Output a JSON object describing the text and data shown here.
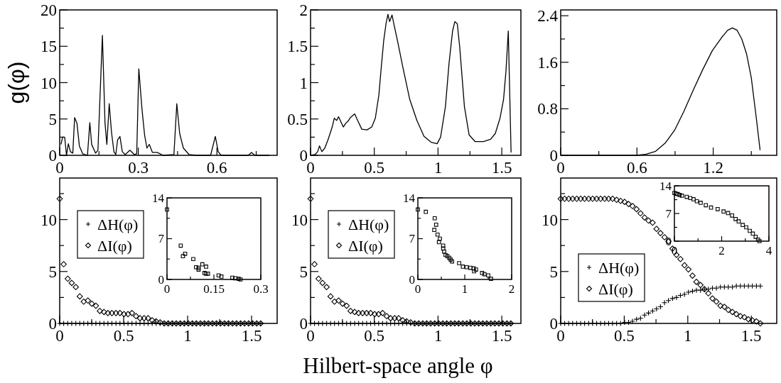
{
  "chart_data": [
    {
      "type": "line",
      "ylabel": "g(φ)",
      "xlim": [
        0,
        0.83
      ],
      "ylim": [
        0,
        20
      ],
      "xticks": [
        0,
        {
          "value": 0.15,
          "label": null
        },
        0.3,
        {
          "value": 0.45,
          "label": null
        },
        0.6,
        {
          "value": 0.75,
          "label": null
        }
      ],
      "yticks": [
        0,
        {
          "value": 2.5,
          "label": null
        },
        5,
        {
          "value": 7.5,
          "label": null
        },
        10,
        {
          "value": 12.5,
          "label": null
        },
        15,
        {
          "value": 17.5,
          "label": null
        },
        20
      ],
      "series": [
        {
          "color": "#000000",
          "x": [
            0.005,
            0.011,
            0.019,
            0.026,
            0.033,
            0.041,
            0.05,
            0.057,
            0.066,
            0.075,
            0.088,
            0.106,
            0.115,
            0.122,
            0.137,
            0.146,
            0.163,
            0.173,
            0.18,
            0.189,
            0.198,
            0.207,
            0.214,
            0.221,
            0.23,
            0.239,
            0.25,
            0.268,
            0.285,
            0.294,
            0.302,
            0.314,
            0.324,
            0.333,
            0.342,
            0.354,
            0.372,
            0.395,
            0.436,
            0.447,
            0.458,
            0.472,
            0.494,
            0.521,
            0.576,
            0.594,
            0.605,
            0.616,
            0.72,
            0.732,
            0.745,
            0.8
          ],
          "values": [
            1.5,
            2.5,
            2.5,
            0,
            1.6,
            0.5,
            0.3,
            5.2,
            4.4,
            1.3,
            0.2,
            0,
            4.5,
            1.5,
            0.3,
            0.7,
            16.5,
            4.4,
            1.5,
            7.1,
            3.1,
            0.5,
            0.1,
            2.1,
            2.6,
            0.5,
            0.1,
            0.7,
            0.1,
            0.2,
            11.9,
            6.4,
            2.8,
            1.0,
            1.5,
            0.4,
            0.4,
            0,
            0.1,
            7.1,
            3.0,
            1.0,
            0.1,
            0,
            0,
            2.6,
            0.5,
            0,
            0,
            0.4,
            0,
            0
          ]
        }
      ]
    },
    {
      "type": "line",
      "xlim": [
        0,
        1.65
      ],
      "ylim": [
        0,
        2
      ],
      "xticks": [
        0,
        {
          "value": 0.25,
          "label": null
        },
        0.5,
        {
          "value": 0.75,
          "label": null
        },
        1,
        {
          "value": 1.25,
          "label": null
        },
        1.5
      ],
      "yticks": [
        0,
        {
          "value": 0.25,
          "label": null
        },
        0.5,
        {
          "value": 0.75,
          "label": null
        },
        1,
        {
          "value": 1.25,
          "label": null
        },
        1.5,
        {
          "value": 1.75,
          "label": null
        },
        2
      ],
      "series": [
        {
          "color": "#000000",
          "x": [
            0,
            0.034,
            0.056,
            0.07,
            0.089,
            0.112,
            0.136,
            0.155,
            0.173,
            0.186,
            0.205,
            0.22,
            0.238,
            0.257,
            0.276,
            0.294,
            0.313,
            0.346,
            0.369,
            0.402,
            0.443,
            0.48,
            0.508,
            0.536,
            0.555,
            0.574,
            0.592,
            0.607,
            0.62,
            0.639,
            0.657,
            0.685,
            0.723,
            0.778,
            0.834,
            0.89,
            0.946,
            0.993,
            1.02,
            1.058,
            1.086,
            1.114,
            1.132,
            1.151,
            1.17,
            1.207,
            1.244,
            1.29,
            1.356,
            1.412,
            1.449,
            1.486,
            1.514,
            1.533,
            1.551,
            1.573
          ],
          "values": [
            0,
            0.01,
            0.05,
            0.13,
            0.05,
            0.1,
            0.21,
            0.31,
            0.41,
            0.51,
            0.48,
            0.53,
            0.46,
            0.39,
            0.44,
            0.47,
            0.52,
            0.57,
            0.48,
            0.36,
            0.35,
            0.39,
            0.51,
            0.83,
            1.22,
            1.58,
            1.81,
            1.94,
            1.84,
            1.93,
            1.78,
            1.55,
            1.22,
            0.77,
            0.48,
            0.26,
            0.18,
            0.16,
            0.25,
            0.67,
            1.26,
            1.71,
            1.84,
            1.81,
            1.49,
            0.67,
            0.28,
            0.19,
            0.19,
            0.22,
            0.3,
            0.51,
            0.77,
            1.16,
            1.71,
            0.04
          ]
        }
      ]
    },
    {
      "type": "line",
      "xlim": [
        0,
        1.7
      ],
      "ylim": [
        0,
        2.5
      ],
      "xticks": [
        0,
        {
          "value": 0.3,
          "label": null
        },
        0.6,
        {
          "value": 0.9,
          "label": null
        },
        1.2,
        {
          "value": 1.5,
          "label": null
        }
      ],
      "yticks": [
        0,
        {
          "value": 0.4,
          "label": null
        },
        0.8,
        {
          "value": 1.2,
          "label": null
        },
        1.6,
        {
          "value": 2.0,
          "label": null
        },
        2.4
      ],
      "series": [
        {
          "color": "#000000",
          "x": [
            0,
            0.6,
            0.673,
            0.747,
            0.822,
            0.896,
            0.97,
            1.045,
            1.119,
            1.193,
            1.268,
            1.314,
            1.351,
            1.388,
            1.425,
            1.463,
            1.5,
            1.537,
            1.569
          ],
          "values": [
            0,
            0,
            0.02,
            0.07,
            0.21,
            0.43,
            0.76,
            1.13,
            1.48,
            1.8,
            2.03,
            2.15,
            2.19,
            2.15,
            2.0,
            1.74,
            1.33,
            0.68,
            0.09
          ]
        }
      ]
    },
    {
      "type": "scatter",
      "legend": "top left",
      "xlim": [
        0,
        1.7
      ],
      "ylim": [
        0,
        14
      ],
      "xticks": [
        0,
        {
          "value": 0.25,
          "label": null
        },
        0.5,
        {
          "value": 0.75,
          "label": null
        },
        1,
        {
          "value": 1.25,
          "label": null
        },
        1.5
      ],
      "yticks": [
        0,
        {
          "value": 2.5,
          "label": null
        },
        5,
        {
          "value": 7.5,
          "label": null
        },
        10,
        {
          "value": 12.5,
          "label": null
        }
      ],
      "x": [
        0,
        0.031,
        0.063,
        0.094,
        0.126,
        0.157,
        0.188,
        0.22,
        0.251,
        0.283,
        0.314,
        0.346,
        0.377,
        0.408,
        0.44,
        0.471,
        0.503,
        0.534,
        0.565,
        0.597,
        0.628,
        0.66,
        0.691,
        0.723,
        0.754,
        0.785,
        0.817,
        0.848,
        0.88,
        0.911,
        0.942,
        0.974,
        1.005,
        1.037,
        1.068,
        1.1,
        1.131,
        1.162,
        1.194,
        1.225,
        1.257,
        1.288,
        1.319,
        1.351,
        1.382,
        1.414,
        1.445,
        1.477,
        1.508,
        1.54,
        1.571
      ],
      "series": [
        {
          "name": "ΔH(φ)",
          "color": "#000000",
          "marker": "cross",
          "values": [
            0,
            0,
            0,
            0,
            0,
            0,
            0,
            0,
            0,
            0,
            0,
            0,
            0,
            0,
            0,
            0,
            0,
            0,
            0,
            0,
            0,
            0,
            0,
            0,
            0,
            0,
            0,
            0,
            0,
            0,
            0,
            0,
            0,
            0,
            0,
            0,
            0,
            0,
            0,
            0,
            0,
            0,
            0,
            0,
            0,
            0,
            0,
            0,
            0,
            0,
            0
          ]
        },
        {
          "name": "ΔI(φ)",
          "color": "#000000",
          "marker": "diamond",
          "values": [
            12.0,
            5.7,
            4.3,
            3.9,
            3.5,
            2.6,
            2.1,
            2.2,
            1.9,
            1.7,
            1.2,
            1.1,
            1.0,
            1.0,
            1.0,
            1.0,
            0.9,
            0.9,
            1.0,
            0.7,
            0.5,
            0.5,
            0.5,
            0.3,
            0.2,
            0.1,
            0,
            0,
            0,
            0,
            0,
            0,
            0,
            0,
            0,
            0,
            0,
            0,
            0,
            0,
            0,
            0,
            0,
            0,
            0,
            0,
            0,
            0,
            0,
            0,
            0
          ]
        }
      ]
    },
    {
      "type": "scatter",
      "legend": "top left",
      "xlabel": "Hilbert-space angle φ",
      "xlim": [
        0,
        1.65
      ],
      "ylim": [
        0,
        14
      ],
      "xticks": [
        0,
        {
          "value": 0.25,
          "label": null
        },
        0.5,
        {
          "value": 0.75,
          "label": null
        },
        1,
        {
          "value": 1.25,
          "label": null
        },
        1.5
      ],
      "yticks": [
        0,
        {
          "value": 2.5,
          "label": null
        },
        5,
        {
          "value": 7.5,
          "label": null
        },
        10,
        {
          "value": 12.5,
          "label": null
        }
      ],
      "x": [
        0,
        0.031,
        0.063,
        0.094,
        0.126,
        0.157,
        0.188,
        0.22,
        0.251,
        0.283,
        0.314,
        0.346,
        0.377,
        0.408,
        0.44,
        0.471,
        0.503,
        0.534,
        0.565,
        0.597,
        0.628,
        0.66,
        0.691,
        0.723,
        0.754,
        0.785,
        0.817,
        0.848,
        0.88,
        0.911,
        0.942,
        0.974,
        1.005,
        1.037,
        1.068,
        1.1,
        1.131,
        1.162,
        1.194,
        1.225,
        1.257,
        1.288,
        1.319,
        1.351,
        1.382,
        1.414,
        1.445,
        1.477,
        1.508,
        1.54,
        1.571
      ],
      "series": [
        {
          "name": "ΔH(φ)",
          "color": "#000000",
          "marker": "cross",
          "values": [
            0,
            0,
            0,
            0,
            0,
            0,
            0,
            0,
            0,
            0,
            0,
            0,
            0,
            0,
            0,
            0,
            0,
            0,
            0,
            0,
            0,
            0,
            0,
            0,
            0,
            0,
            0,
            0,
            0,
            0,
            0,
            0,
            0,
            0,
            0,
            0,
            0,
            0,
            0,
            0,
            0,
            0,
            0,
            0,
            0,
            0,
            0,
            0,
            0,
            0,
            0
          ]
        },
        {
          "name": "ΔI(φ)",
          "color": "#000000",
          "marker": "diamond",
          "values": [
            12.0,
            5.7,
            4.3,
            3.9,
            3.5,
            2.6,
            2.1,
            2.2,
            1.9,
            1.7,
            1.2,
            1.1,
            1.0,
            1.0,
            1.0,
            1.0,
            0.9,
            0.9,
            1.0,
            0.7,
            0.5,
            0.5,
            0.5,
            0.3,
            0.2,
            0.1,
            0,
            0,
            0,
            0,
            0,
            0,
            0,
            0,
            0,
            0,
            0,
            0,
            0,
            0,
            0,
            0,
            0,
            0,
            0,
            0,
            0,
            0,
            0,
            0,
            0
          ]
        }
      ]
    },
    {
      "type": "scatter",
      "legend": "bottom left",
      "xlim": [
        0,
        1.7
      ],
      "ylim": [
        0,
        14
      ],
      "xticks": [
        0,
        {
          "value": 0.25,
          "label": null
        },
        0.5,
        {
          "value": 0.75,
          "label": null
        },
        1,
        {
          "value": 1.25,
          "label": null
        },
        1.5
      ],
      "yticks": [
        0,
        {
          "value": 2.5,
          "label": null
        },
        5,
        {
          "value": 7.5,
          "label": null
        },
        10,
        {
          "value": 12.5,
          "label": null
        }
      ],
      "x": [
        0,
        0.031,
        0.063,
        0.094,
        0.126,
        0.157,
        0.188,
        0.22,
        0.251,
        0.283,
        0.314,
        0.346,
        0.377,
        0.408,
        0.44,
        0.471,
        0.503,
        0.534,
        0.565,
        0.597,
        0.628,
        0.66,
        0.691,
        0.723,
        0.754,
        0.785,
        0.817,
        0.848,
        0.88,
        0.911,
        0.942,
        0.974,
        1.005,
        1.037,
        1.068,
        1.1,
        1.131,
        1.162,
        1.194,
        1.225,
        1.257,
        1.288,
        1.319,
        1.351,
        1.382,
        1.414,
        1.445,
        1.477,
        1.508,
        1.54,
        1.571
      ],
      "series": [
        {
          "name": "ΔH(φ)",
          "color": "#000000",
          "marker": "cross",
          "values": [
            0,
            0,
            0,
            0,
            0,
            0,
            0,
            0,
            0,
            0,
            0,
            0,
            0,
            0,
            0,
            0,
            0.1,
            0.1,
            0.2,
            0.4,
            0.5,
            0.8,
            1.0,
            1.2,
            1.4,
            1.6,
            2.0,
            2.2,
            2.4,
            2.5,
            2.7,
            2.8,
            3.0,
            3.1,
            3.2,
            3.2,
            3.3,
            3.3,
            3.4,
            3.4,
            3.5,
            3.5,
            3.5,
            3.5,
            3.6,
            3.6,
            3.6,
            3.6,
            3.6,
            3.6,
            3.6
          ]
        },
        {
          "name": "ΔI(φ)",
          "color": "#000000",
          "marker": "diamond",
          "values": [
            12.0,
            12.0,
            12.0,
            12.0,
            12.0,
            12.0,
            12.0,
            12.0,
            12.0,
            12.0,
            12.0,
            12.0,
            12.0,
            12.0,
            11.9,
            11.8,
            11.7,
            11.5,
            11.3,
            11.0,
            10.6,
            10.2,
            9.9,
            9.7,
            9.1,
            8.7,
            8.3,
            7.9,
            7.2,
            6.6,
            6.2,
            5.6,
            5.2,
            4.6,
            4.0,
            3.7,
            3.3,
            2.9,
            2.4,
            2.1,
            1.7,
            1.6,
            1.3,
            1.1,
            0.9,
            0.7,
            0.6,
            0.4,
            0.3,
            0.2,
            0
          ]
        }
      ]
    },
    {
      "type": "scatter",
      "xlim": [
        0,
        0.3
      ],
      "ylim": [
        0,
        14
      ],
      "xticks": [
        0,
        {
          "value": 0.075,
          "label": null
        },
        0.15,
        {
          "value": 0.225,
          "label": null
        },
        0.3
      ],
      "yticks": [
        0,
        {
          "value": 3.5,
          "label": null
        },
        7,
        {
          "value": 10.5,
          "label": null
        },
        14
      ],
      "series": [
        {
          "color": "#000000",
          "marker": "square",
          "x": [
            0,
            0.044,
            0.051,
            0.058,
            0.084,
            0.093,
            0.101,
            0.101,
            0.113,
            0.125,
            0.12,
            0.125,
            0.131,
            0.165,
            0.174,
            0.209,
            0.218,
            0.229,
            0.235
          ],
          "values": [
            12.0,
            5.8,
            4.0,
            4.4,
            3.5,
            2.1,
            2.0,
            1.7,
            2.6,
            2.2,
            1.1,
            1.0,
            1.0,
            0.7,
            0.5,
            0.3,
            0.2,
            0.1,
            0
          ]
        }
      ]
    },
    {
      "type": "scatter",
      "xlim": [
        0,
        2
      ],
      "ylim": [
        0,
        14
      ],
      "xticks": [
        0,
        {
          "value": 0.5,
          "label": null
        },
        1,
        {
          "value": 1.5,
          "label": null
        },
        2
      ],
      "yticks": [
        0,
        {
          "value": 3.5,
          "label": null
        },
        7,
        {
          "value": 10.5,
          "label": null
        },
        14
      ],
      "series": [
        {
          "color": "#000000",
          "marker": "square",
          "x": [
            0,
            0.17,
            0.36,
            0.35,
            0.39,
            0.42,
            0.47,
            0.45,
            0.54,
            0.54,
            0.56,
            0.59,
            0.63,
            0.67,
            0.7,
            0.73,
            0.88,
            0.96,
            1.04,
            1.12,
            1.19,
            1.2,
            1.24,
            1.37,
            1.42,
            1.5,
            1.56
          ],
          "values": [
            12.0,
            11.6,
            10.5,
            8.5,
            9.4,
            7.7,
            7.0,
            6.4,
            5.8,
            5.3,
            4.8,
            4.2,
            4.0,
            3.7,
            3.4,
            3.1,
            2.8,
            2.2,
            2.1,
            2.0,
            1.9,
            1.4,
            1.7,
            1.1,
            0.9,
            0.7,
            0.1
          ]
        }
      ]
    },
    {
      "type": "scatter",
      "xlim": [
        0,
        4
      ],
      "ylim": [
        0,
        14
      ],
      "xticks": [
        0,
        {
          "value": 1,
          "label": null
        },
        2,
        {
          "value": 3,
          "label": null
        },
        4
      ],
      "yticks": [
        0,
        {
          "value": 3.5,
          "label": null
        },
        7,
        {
          "value": 10.5,
          "label": null
        },
        14
      ],
      "series": [
        {
          "color": "#000000",
          "marker": "square",
          "x": [
            0,
            0.07,
            0.14,
            0.22,
            0.32,
            0.52,
            0.67,
            0.81,
            0.95,
            1.11,
            1.33,
            1.55,
            1.83,
            2.08,
            2.27,
            2.44,
            2.59,
            2.72,
            2.89,
            3.04,
            3.19,
            3.32,
            3.44,
            3.54,
            3.6
          ],
          "values": [
            12.2,
            12.0,
            11.9,
            11.7,
            11.5,
            11.2,
            10.9,
            10.6,
            10.1,
            9.7,
            9.1,
            8.5,
            8.1,
            7.5,
            7.1,
            6.5,
            5.6,
            5.0,
            4.1,
            3.5,
            2.6,
            1.9,
            1.1,
            0.4,
            0
          ]
        }
      ]
    }
  ]
}
